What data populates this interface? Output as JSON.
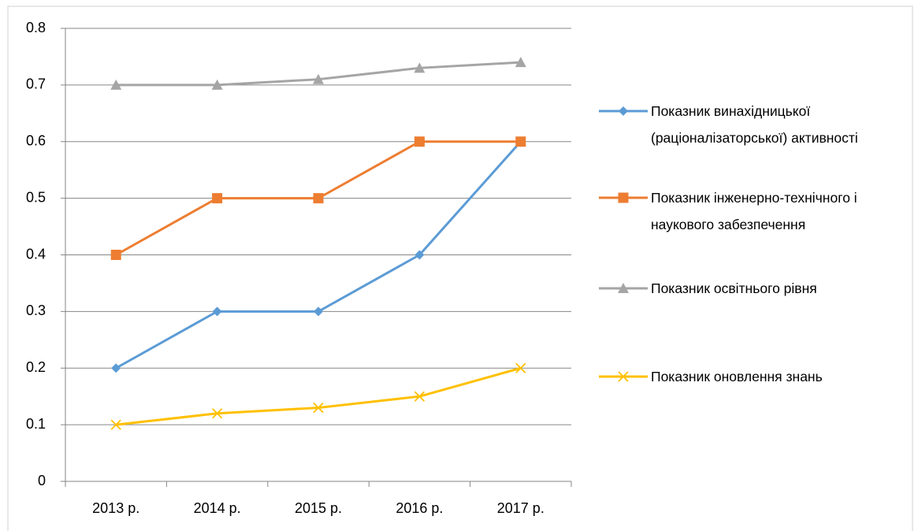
{
  "chart_data": {
    "type": "line",
    "categories": [
      "2013 р.",
      "2014 р.",
      "2015 р.",
      "2016 р.",
      "2017 р."
    ],
    "series": [
      {
        "name": "Показник винахідницької (раціоналізаторської) активності",
        "color": "#5b9bd5",
        "marker": "diamond",
        "values": [
          0.2,
          0.3,
          0.3,
          0.4,
          0.6
        ]
      },
      {
        "name": "Показник інженерно-технічного і наукового забезпечення",
        "color": "#ed7d31",
        "marker": "square",
        "values": [
          0.4,
          0.5,
          0.5,
          0.6,
          0.6
        ]
      },
      {
        "name": "Показник освітнього рівня",
        "color": "#a5a5a5",
        "marker": "triangle",
        "values": [
          0.7,
          0.7,
          0.71,
          0.73,
          0.74
        ]
      },
      {
        "name": "Показник оновлення знань",
        "color": "#ffc000",
        "marker": "x",
        "values": [
          0.1,
          0.12,
          0.13,
          0.15,
          0.2
        ]
      }
    ],
    "ylim": [
      0,
      0.8
    ],
    "yticks": [
      0,
      0.1,
      0.2,
      0.3,
      0.4,
      0.5,
      0.6,
      0.7,
      0.8
    ],
    "grid": true,
    "legend": "right"
  }
}
